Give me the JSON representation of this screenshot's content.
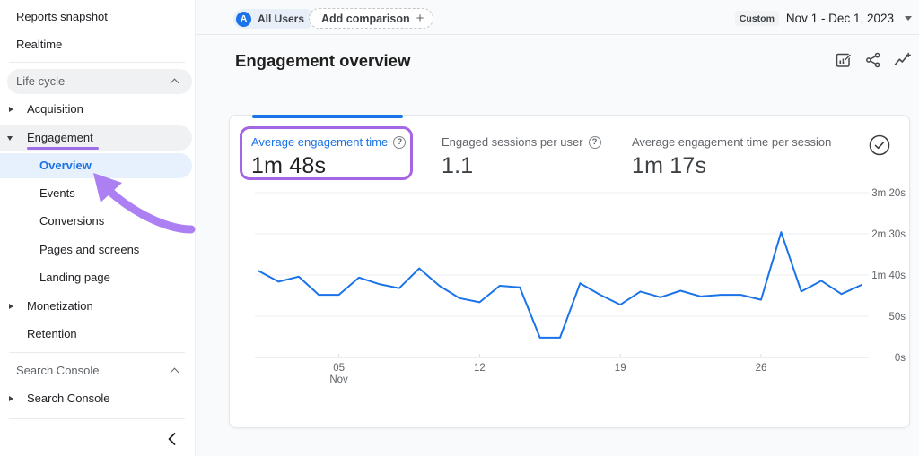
{
  "colors": {
    "accent_blue": "#1a73e8",
    "annotation_purple": "#a566e3",
    "text_dark": "#202124",
    "text_gray": "#5f6368",
    "pill_gray": "#f0f1f3",
    "pill_blue": "#e7f0fd",
    "gridline": "#ebedef"
  },
  "glyphs": {
    "help": "?",
    "avatar": "A",
    "plus": "+"
  },
  "icons": {
    "customize_report": "customize-report-icon",
    "share": "share-icon",
    "insights": "insights-icon",
    "data_quality": "check-circle-icon",
    "date_caret": "chevron-down-icon",
    "sidebar_collapse": "chevron-left-icon"
  },
  "sidebar": {
    "reports_snapshot": "Reports snapshot",
    "realtime": "Realtime",
    "life_cycle_header": "Life cycle",
    "acquisition": "Acquisition",
    "engagement": "Engagement",
    "overview": "Overview",
    "events": "Events",
    "conversions": "Conversions",
    "pages_and_screens": "Pages and screens",
    "landing_page": "Landing page",
    "monetization": "Monetization",
    "retention": "Retention",
    "search_console_header": "Search Console",
    "search_console_item": "Search Console"
  },
  "topbar": {
    "all_users": "All Users",
    "add_comparison": "Add comparison",
    "custom_badge": "Custom",
    "date_range": "Nov 1 - Dec 1, 2023"
  },
  "header": {
    "title": "Engagement overview"
  },
  "metrics": {
    "tab1": {
      "label": "Average engagement time",
      "value": "1m 48s"
    },
    "tab2": {
      "label": "Engaged sessions per user",
      "value": "1.1"
    },
    "tab3": {
      "label": "Average engagement time per session",
      "value": "1m 17s"
    }
  },
  "chart_data": {
    "type": "line",
    "series_name": "Average engagement time",
    "unit": "seconds",
    "categories": [
      "Nov 1",
      "Nov 2",
      "Nov 3",
      "Nov 4",
      "Nov 5",
      "Nov 6",
      "Nov 7",
      "Nov 8",
      "Nov 9",
      "Nov 10",
      "Nov 11",
      "Nov 12",
      "Nov 13",
      "Nov 14",
      "Nov 15",
      "Nov 16",
      "Nov 17",
      "Nov 18",
      "Nov 19",
      "Nov 20",
      "Nov 21",
      "Nov 22",
      "Nov 23",
      "Nov 24",
      "Nov 25",
      "Nov 26",
      "Nov 27",
      "Nov 28",
      "Nov 29",
      "Nov 30",
      "Dec 1"
    ],
    "values": [
      105,
      92,
      98,
      76,
      76,
      97,
      89,
      84,
      108,
      87,
      72,
      67,
      87,
      85,
      24,
      24,
      90,
      76,
      64,
      80,
      73,
      81,
      74,
      76,
      76,
      70,
      152,
      80,
      93,
      77,
      88
    ],
    "ylim": [
      0,
      200
    ],
    "y_ticks": [
      {
        "value": 0,
        "label": "0s"
      },
      {
        "value": 50,
        "label": "50s"
      },
      {
        "value": 100,
        "label": "1m 40s"
      },
      {
        "value": 150,
        "label": "2m 30s"
      },
      {
        "value": 200,
        "label": "3m 20s"
      }
    ],
    "x_ticks": [
      {
        "index": 4,
        "label": "05",
        "sub": "Nov"
      },
      {
        "index": 11,
        "label": "12"
      },
      {
        "index": 18,
        "label": "19"
      },
      {
        "index": 25,
        "label": "26"
      }
    ],
    "line_color": "#1a73e8",
    "grid": true,
    "legend": false
  }
}
